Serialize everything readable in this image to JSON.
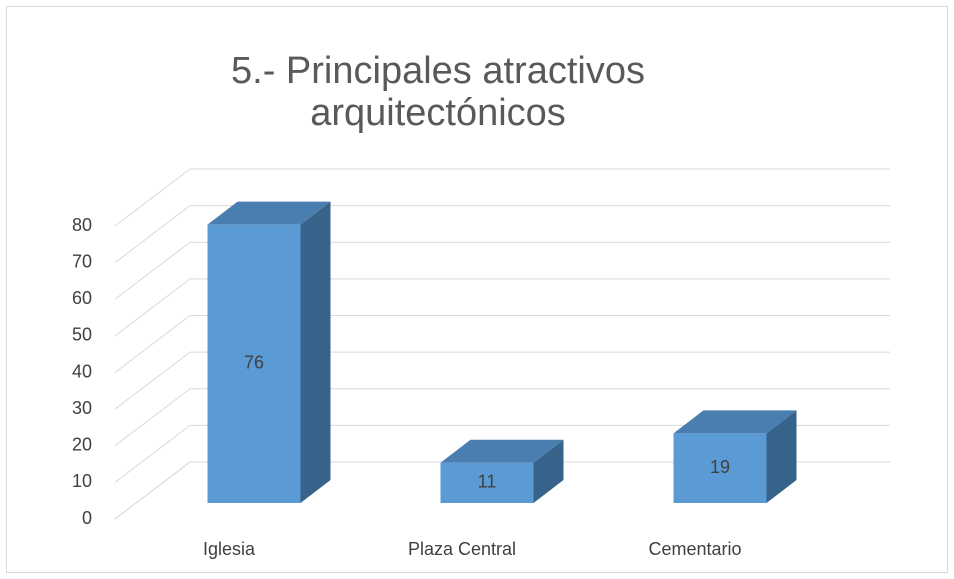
{
  "chart_data": {
    "type": "bar3d",
    "title": [
      "5.- Principales atractivos",
      "arquitectónicos"
    ],
    "categories": [
      "Iglesia",
      "Plaza Central",
      "Cementario"
    ],
    "values": [
      76,
      11,
      19
    ],
    "color": "#5b9bd5",
    "ylim": [
      0,
      80
    ],
    "yticks": [
      0,
      10,
      20,
      30,
      40,
      50,
      60,
      70,
      80
    ],
    "grid": true
  }
}
